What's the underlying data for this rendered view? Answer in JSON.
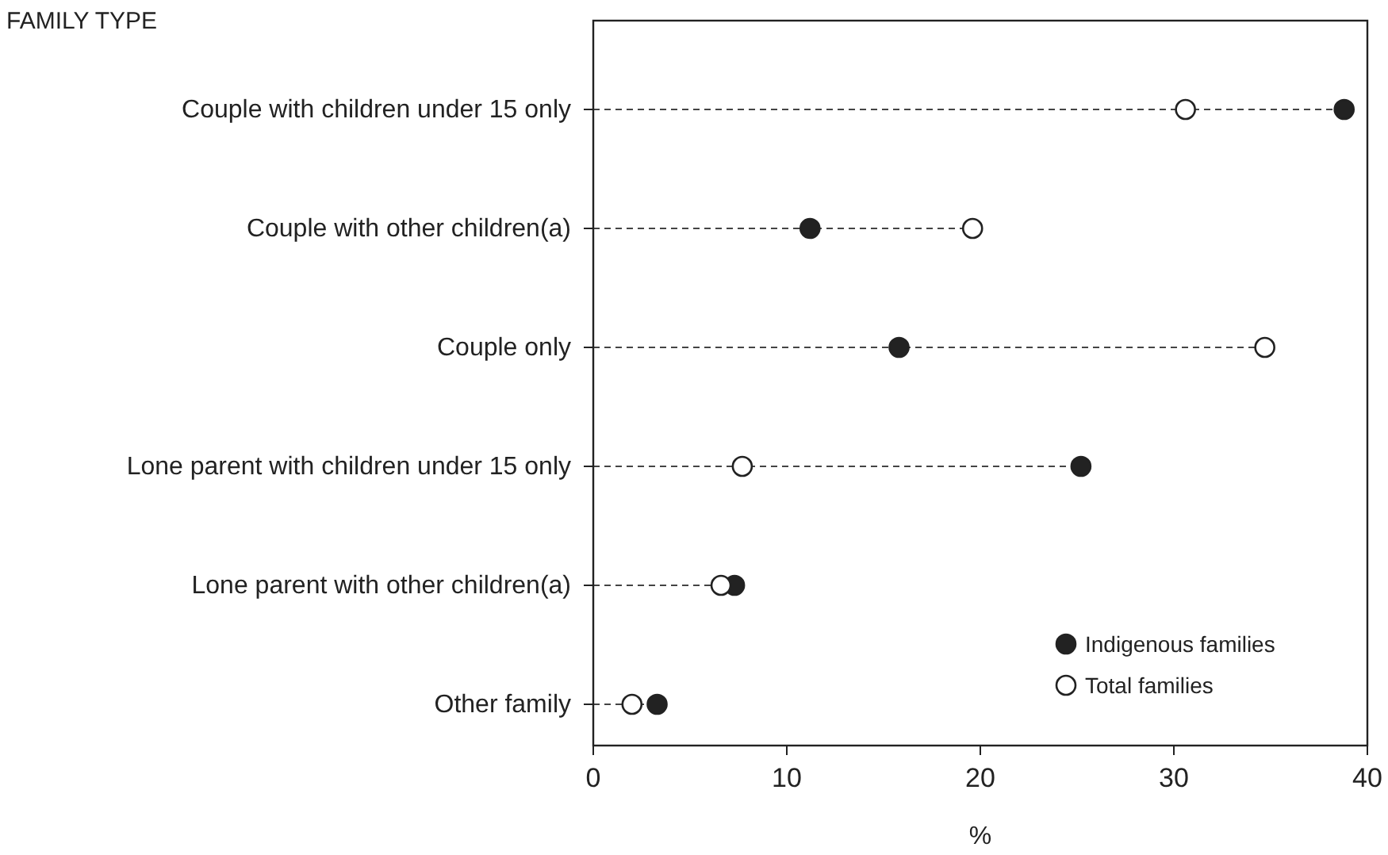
{
  "chart_data": {
    "type": "lollipop",
    "orientation": "horizontal",
    "ylabel": "FAMILY TYPE",
    "xlabel": "%",
    "categories": [
      "Couple with children under 15 only",
      "Couple with other children(a)",
      "Couple only",
      "Lone parent with children under 15 only",
      "Lone parent with other children(a)",
      "Other family"
    ],
    "series": [
      {
        "name": "Indigenous families",
        "color": "#222222",
        "values": [
          38.8,
          11.2,
          15.8,
          25.2,
          7.3,
          3.3
        ]
      },
      {
        "name": "Total families",
        "color": "#ffffff",
        "values": [
          30.6,
          19.6,
          34.7,
          7.7,
          6.6,
          2.0
        ]
      }
    ],
    "xlim": [
      0,
      40
    ],
    "xticks": [
      0,
      10,
      20,
      30,
      40
    ],
    "grid": false,
    "legend": "bottom right",
    "marker": "circle",
    "line_style": "dashed"
  }
}
